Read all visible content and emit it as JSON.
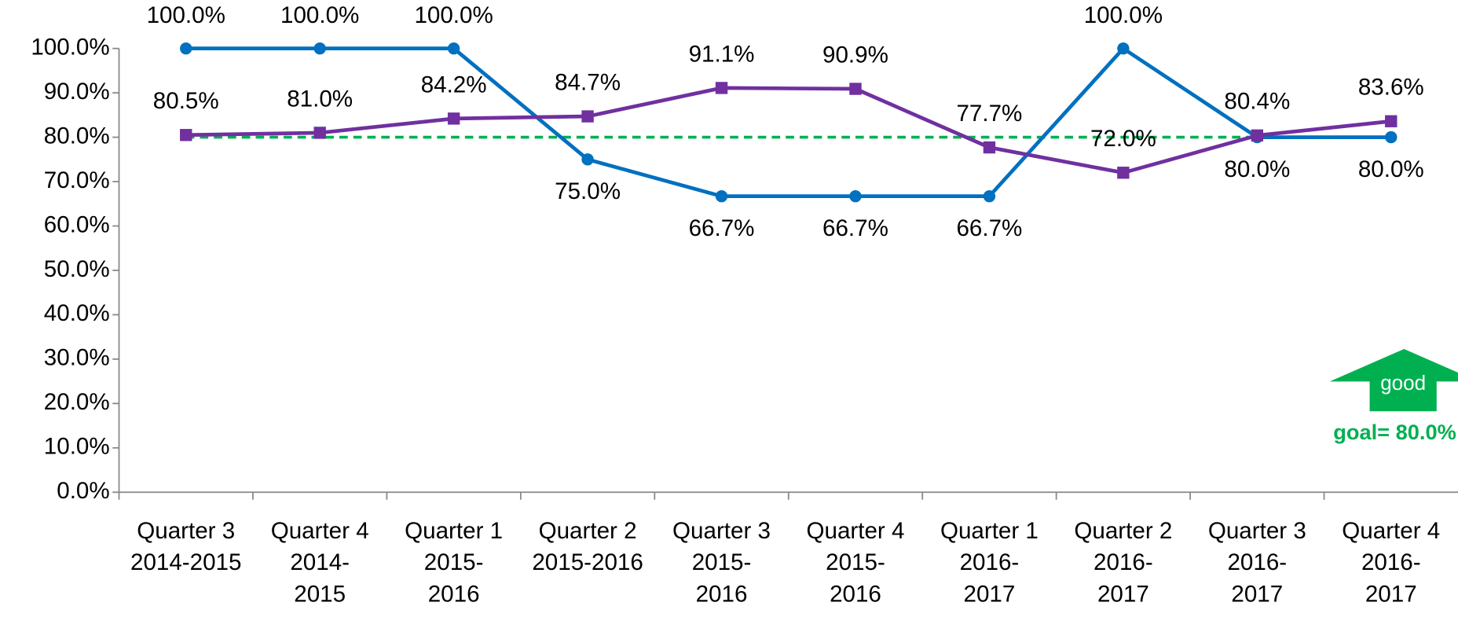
{
  "chart_data": {
    "type": "line",
    "categories": [
      [
        "Quarter 3",
        "2014-2015"
      ],
      [
        "Quarter 4",
        "2014-",
        "2015"
      ],
      [
        "Quarter 1",
        "2015-",
        "2016"
      ],
      [
        "Quarter 2",
        "2015-2016"
      ],
      [
        "Quarter 3",
        "2015-",
        "2016"
      ],
      [
        "Quarter 4",
        "2015-",
        "2016"
      ],
      [
        "Quarter 1",
        "2016-",
        "2017"
      ],
      [
        "Quarter 2",
        "2016-",
        "2017"
      ],
      [
        "Quarter 3",
        "2016-",
        "2017"
      ],
      [
        "Quarter 4",
        "2016-",
        "2017"
      ]
    ],
    "series": [
      {
        "color": "#0070c0",
        "marker": "circle",
        "values": [
          100,
          100,
          100,
          75,
          66.7,
          66.7,
          66.7,
          100,
          80,
          80
        ],
        "value_labels": [
          "100.0%",
          "100.0%",
          "100.0%",
          "75.0%",
          "66.7%",
          "66.7%",
          "66.7%",
          "100.0%",
          "80.0%",
          "80.0%"
        ]
      },
      {
        "color": "#7030a0",
        "marker": "square",
        "values": [
          80.5,
          81,
          84.2,
          84.7,
          91.1,
          90.9,
          77.7,
          72,
          80.4,
          83.6
        ],
        "value_labels": [
          "80.5%",
          "81.0%",
          "84.2%",
          "84.7%",
          "91.1%",
          "90.9%",
          "77.7%",
          "72.0%",
          "80.4%",
          "83.6%"
        ]
      }
    ],
    "goal": {
      "value": 80,
      "label": "goal= 80.0%",
      "color": "#00b050"
    },
    "arrow_label": "good",
    "ylim": [
      0,
      100
    ],
    "yticks": [
      {
        "value": 0,
        "label": "0.0%"
      },
      {
        "value": 10,
        "label": "10.0%"
      },
      {
        "value": 20,
        "label": "20.0%"
      },
      {
        "value": 30,
        "label": "30.0%"
      },
      {
        "value": 40,
        "label": "40.0%"
      },
      {
        "value": 50,
        "label": "50.0%"
      },
      {
        "value": 60,
        "label": "60.0%"
      },
      {
        "value": 70,
        "label": "70.0%"
      },
      {
        "value": 80,
        "label": "80.0%"
      },
      {
        "value": 90,
        "label": "90.0%"
      },
      {
        "value": 100,
        "label": "100.0%"
      }
    ]
  }
}
